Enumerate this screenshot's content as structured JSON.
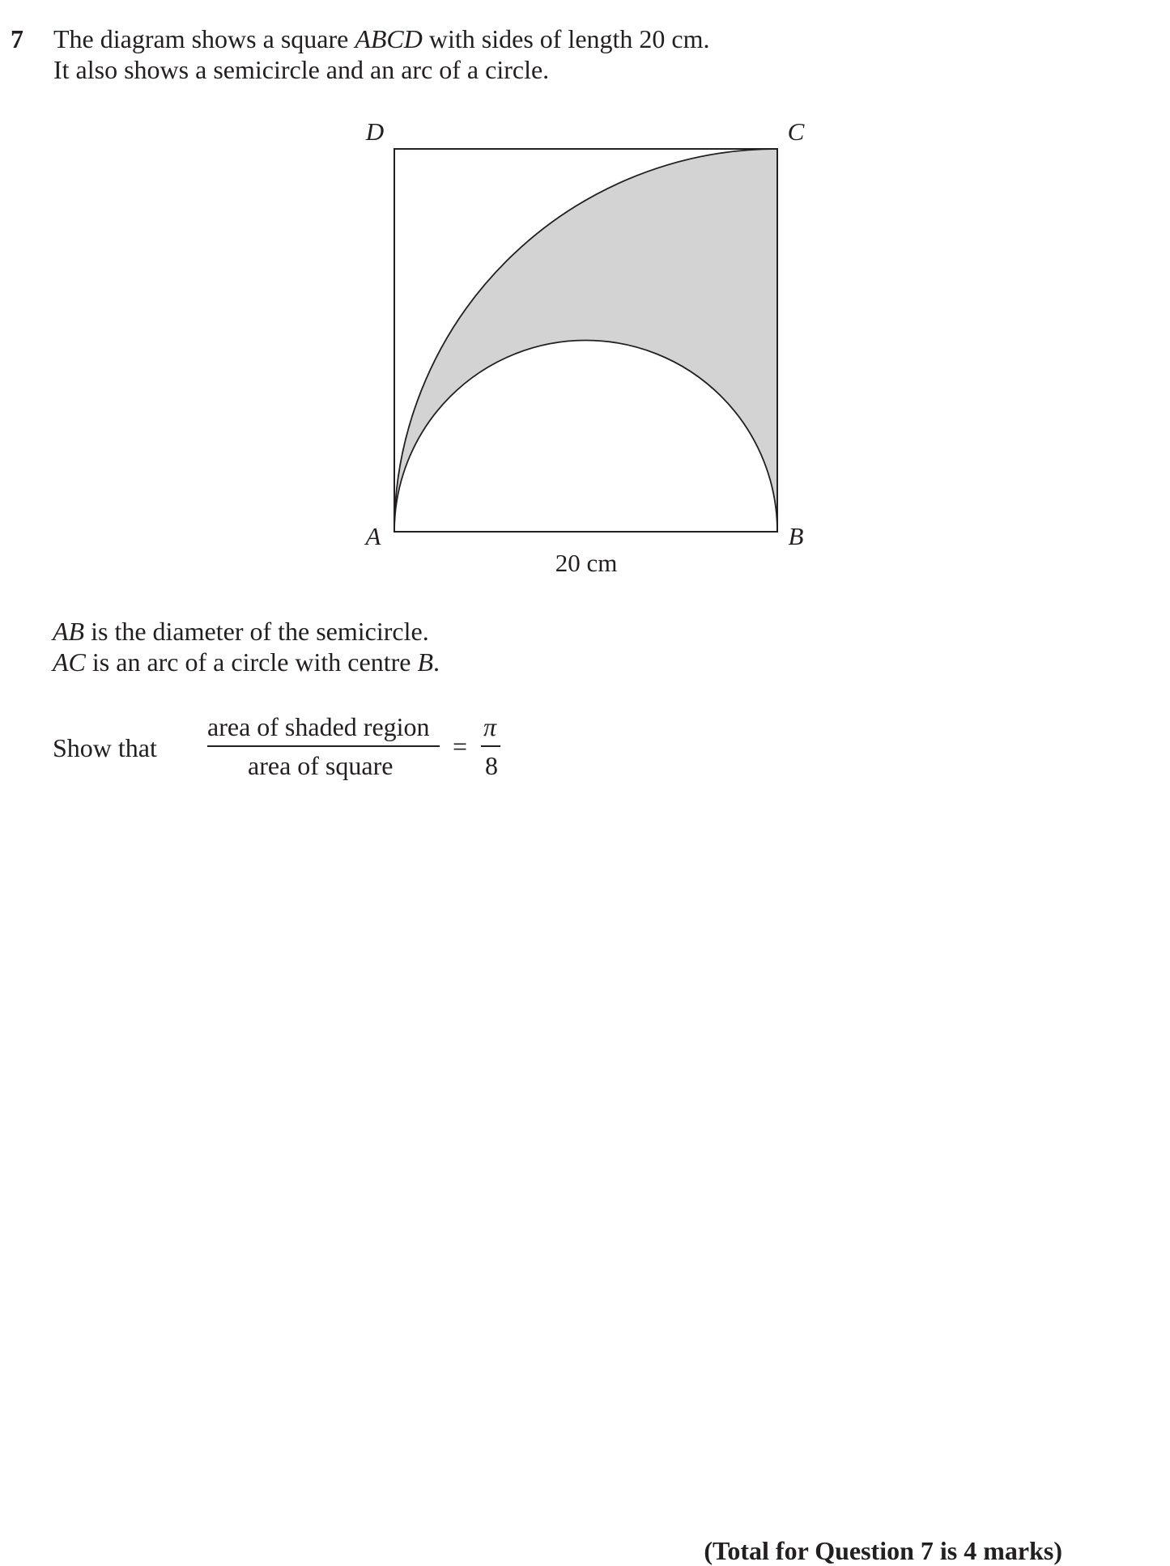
{
  "question": {
    "number": "7",
    "intro_line1_part1": "The diagram shows a square ",
    "intro_line1_italic": "ABCD",
    "intro_line1_part2": " with sides of length 20 cm.",
    "intro_line2": "It also shows a semicircle and an arc of a circle."
  },
  "diagram": {
    "vertex_labels": {
      "A": "A",
      "B": "B",
      "C": "C",
      "D": "D"
    },
    "side_label": "20 cm",
    "shaded_color": "#d3d3d3"
  },
  "statements": {
    "line1_italic": "AB",
    "line1_rest": " is the diameter of the semicircle.",
    "line2_italic": "AC",
    "line2_mid": " is an arc of a circle with centre ",
    "line2_italic2": "B",
    "line2_end": "."
  },
  "show_that": {
    "prefix": "Show that",
    "numerator": "area of shaded region",
    "denominator": "area of square",
    "equals": "=",
    "rhs_numerator": "π",
    "rhs_denominator": "8"
  },
  "footer": {
    "total": "(Total for Question 7 is 4 marks)"
  }
}
